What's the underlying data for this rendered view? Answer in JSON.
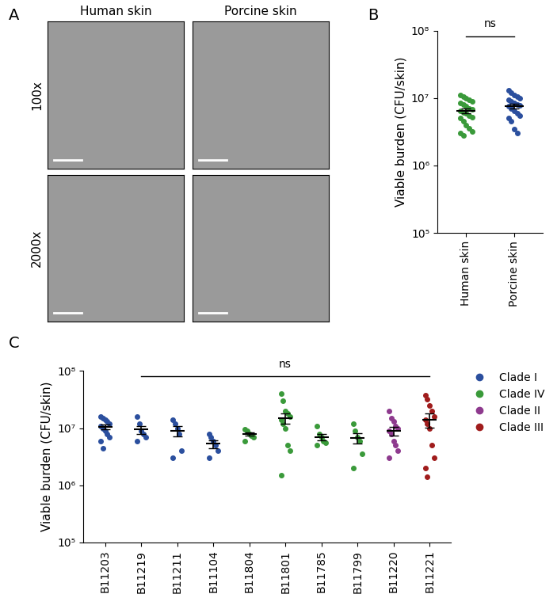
{
  "chart_data": [
    {
      "type": "image_grid",
      "label": "A",
      "columns": [
        "Human skin",
        "Porcine skin"
      ],
      "rows": [
        "100x",
        "2000x"
      ]
    },
    {
      "type": "dot",
      "label": "B",
      "categories": [
        "Human skin",
        "Porcine skin"
      ],
      "colors": [
        "#3a9a3a",
        "#2b4f9e"
      ],
      "values": [
        [
          11000000,
          10500000,
          10000000,
          9500000,
          9000000,
          8500000,
          8000000,
          7500000,
          7000000,
          6800000,
          6500000,
          6200000,
          6000000,
          5500000,
          5200000,
          5000000,
          4500000,
          4000000,
          3600000,
          3200000,
          3000000,
          2800000
        ],
        [
          13000000,
          12000000,
          11000000,
          10500000,
          10000000,
          9500000,
          9000000,
          8500000,
          8000000,
          7800000,
          7500000,
          7000000,
          6500000,
          6000000,
          5500000,
          5000000,
          4500000,
          3500000,
          3000000
        ]
      ],
      "mean": [
        6500000,
        7600000
      ],
      "error": [
        550000,
        600000
      ],
      "ylabel": "Viable burden (CFU/skin)",
      "log": "y",
      "ylim": [
        100000,
        100000000
      ],
      "yticks": [
        {
          "value": 100000,
          "label": "10⁵"
        },
        {
          "value": 1000000,
          "label": "10⁶"
        },
        {
          "value": 10000000,
          "label": "10⁷"
        },
        {
          "value": 100000000,
          "label": "10⁸"
        }
      ],
      "annotations": [
        {
          "text": "ns",
          "from": 0,
          "to": 1
        }
      ]
    },
    {
      "type": "dot",
      "label": "C",
      "categories": [
        "B11203",
        "B11219",
        "B11211",
        "B11104",
        "B11804",
        "B11801",
        "B11785",
        "B11799",
        "B11220",
        "B11221"
      ],
      "colors": [
        "#2b4f9e",
        "#2b4f9e",
        "#2b4f9e",
        "#2b4f9e",
        "#3a9a3a",
        "#3a9a3a",
        "#3a9a3a",
        "#3a9a3a",
        "#8e3a8e",
        "#a01c1c"
      ],
      "values": [
        [
          16000000,
          15000000,
          14000000,
          13000000,
          12000000,
          11000000,
          10000000,
          9000000,
          8000000,
          7000000,
          6000000,
          4500000
        ],
        [
          16000000,
          12000000,
          9000000,
          8000000,
          7000000,
          6000000
        ],
        [
          14000000,
          12000000,
          10000000,
          8000000,
          4000000,
          3000000
        ],
        [
          8000000,
          7000000,
          6000000,
          5000000,
          4000000,
          3000000
        ],
        [
          9500000,
          9000000,
          8000000,
          7500000,
          7000000,
          6000000
        ],
        [
          40000000,
          30000000,
          20000000,
          18000000,
          16000000,
          14000000,
          12000000,
          10000000,
          5000000,
          4000000,
          1500000
        ],
        [
          11000000,
          8000000,
          7000000,
          6000000,
          5500000,
          5000000
        ],
        [
          12000000,
          9000000,
          7000000,
          6000000,
          3500000,
          2000000
        ],
        [
          20000000,
          15000000,
          13000000,
          11000000,
          10000000,
          9000000,
          8000000,
          6000000,
          5000000,
          4000000,
          3000000
        ],
        [
          38000000,
          32000000,
          25000000,
          20000000,
          16000000,
          14000000,
          12000000,
          10000000,
          5000000,
          3000000,
          2000000,
          1400000
        ]
      ],
      "mean": [
        10500000,
        9500000,
        9000000,
        5300000,
        7800000,
        15000000,
        7000000,
        6700000,
        9000000,
        14000000
      ],
      "error": [
        1000000,
        1500000,
        1800000,
        800000,
        500000,
        3200000,
        900000,
        1400000,
        1500000,
        3800000
      ],
      "ylabel": "Viable burden (CFU/skin)",
      "log": "y",
      "ylim": [
        100000,
        100000000
      ],
      "yticks": [
        {
          "value": 100000,
          "label": "10⁵"
        },
        {
          "value": 1000000,
          "label": "10⁶"
        },
        {
          "value": 10000000,
          "label": "10⁷"
        },
        {
          "value": 100000000,
          "label": "10⁸"
        }
      ],
      "annotations": [
        {
          "text": "ns",
          "from": 1,
          "to": 9
        }
      ],
      "legend": "right",
      "legend_items": [
        {
          "name": "Clade I",
          "color": "#2b4f9e"
        },
        {
          "name": "Clade IV",
          "color": "#3a9a3a"
        },
        {
          "name": "Clade II",
          "color": "#8e3a8e"
        },
        {
          "name": "Clade III",
          "color": "#a01c1c"
        }
      ]
    }
  ]
}
